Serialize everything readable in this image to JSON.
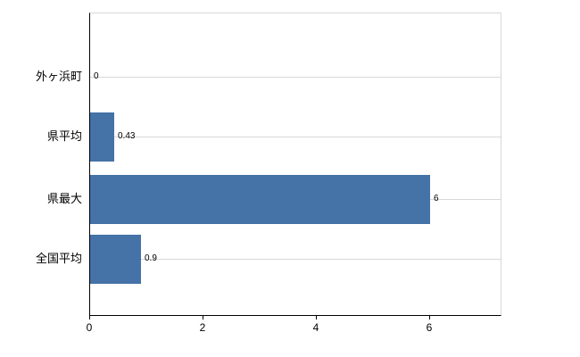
{
  "chart_data": {
    "type": "bar",
    "orientation": "horizontal",
    "title": "",
    "xlabel": "",
    "ylabel": "",
    "categories": [
      "外ヶ浜町",
      "県平均",
      "県最大",
      "全国平均"
    ],
    "values": [
      0,
      0.43,
      6,
      0.9
    ],
    "value_labels": [
      "0",
      "0.43",
      "6",
      "0.9"
    ],
    "xlim": [
      0,
      7.25
    ],
    "x_ticks": [
      0,
      2,
      4,
      6
    ],
    "x_tick_labels": [
      "0",
      "2",
      "4",
      "6"
    ],
    "grid": true,
    "legend": false,
    "bar_color": "#4572a7",
    "grid_color": "#d8d8d8",
    "axis_color": "#000000",
    "background_color": "#ffffff"
  }
}
